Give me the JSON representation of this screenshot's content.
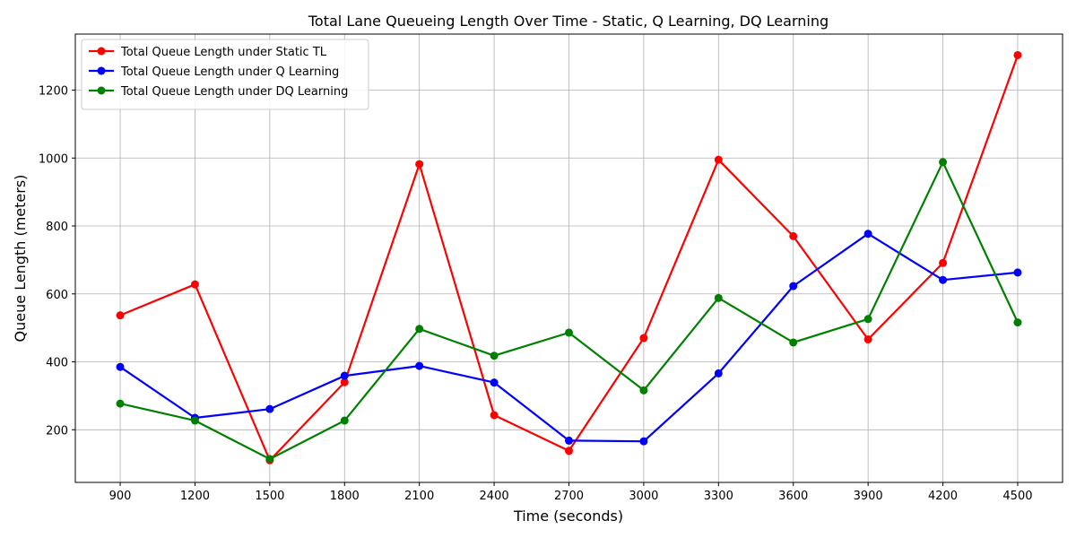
{
  "chart_data": {
    "type": "line",
    "title": "Total Lane Queueing Length Over Time - Static, Q Learning, DQ Learning",
    "xlabel": "Time (seconds)",
    "ylabel": "Queue Length (meters)",
    "x": [
      900,
      1200,
      1500,
      1800,
      2100,
      2400,
      2700,
      3000,
      3300,
      3600,
      3900,
      4200,
      4500
    ],
    "x_tick_labels": [
      "900",
      "1200",
      "1500",
      "1800",
      "2100",
      "2400",
      "2700",
      "3000",
      "3300",
      "3600",
      "3900",
      "4200",
      "4500"
    ],
    "xlim": [
      720,
      4680
    ],
    "ylim": [
      45,
      1365
    ],
    "y_ticks": [
      200,
      400,
      600,
      800,
      1000,
      1200
    ],
    "y_tick_labels": [
      "200",
      "400",
      "600",
      "800",
      "1000",
      "1200"
    ],
    "grid": true,
    "legend_position": "upper-left",
    "series": [
      {
        "name": "Total Queue Length under Static TL",
        "color": "#ff0000",
        "values": [
          537,
          628,
          110,
          340,
          982,
          243,
          138,
          470,
          995,
          770,
          466,
          691,
          1303
        ]
      },
      {
        "name": "Total Queue Length under Q Learning",
        "color": "#0000ff",
        "values": [
          385,
          235,
          261,
          359,
          388,
          339,
          168,
          166,
          366,
          623,
          777,
          641,
          663
        ]
      },
      {
        "name": "Total Queue Length under DQ Learning",
        "color": "#008000",
        "values": [
          277,
          227,
          114,
          227,
          497,
          418,
          486,
          316,
          588,
          457,
          526,
          988,
          516
        ]
      }
    ]
  }
}
